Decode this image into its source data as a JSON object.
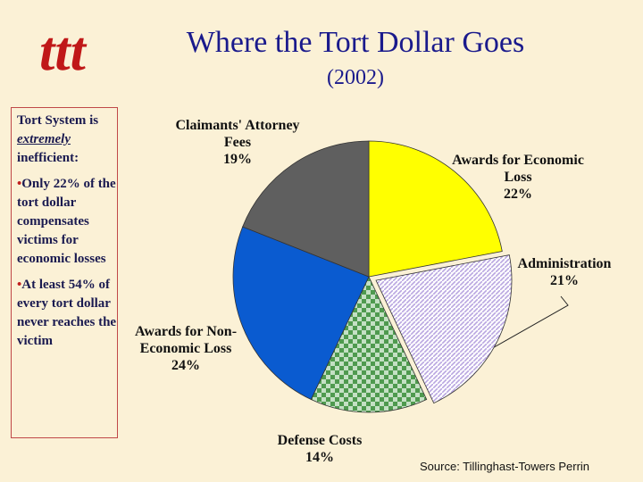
{
  "logo": "ttt",
  "chart_data": {
    "type": "pie",
    "title": "Where the Tort Dollar Goes",
    "subtitle": "(2002)",
    "categories": [
      "Awards for Economic Loss",
      "Administration",
      "Defense Costs",
      "Awards for Non-Economic Loss",
      "Claimants' Attorney Fees"
    ],
    "values": [
      22,
      21,
      14,
      24,
      19
    ],
    "value_labels": [
      "22%",
      "21%",
      "14%",
      "24%",
      "19%"
    ],
    "colors": [
      "#ffff00",
      "#b9a6e0",
      "#4f9a4f",
      "#0a5bd0",
      "#5f5f5f"
    ],
    "patterns": [
      null,
      "hatch",
      "checker",
      null,
      null
    ],
    "exploded": [
      false,
      true,
      false,
      false,
      false
    ]
  },
  "sidebar": {
    "intro_before": "Tort System is ",
    "intro_emphasis": "extremely",
    "intro_after": " inefficient:",
    "bullets": [
      "Only 22% of the tort dollar compensates victims for economic losses",
      "At least 54% of every tort dollar never reaches the victim"
    ]
  },
  "source": "Source:  Tillinghast-Towers Perrin"
}
